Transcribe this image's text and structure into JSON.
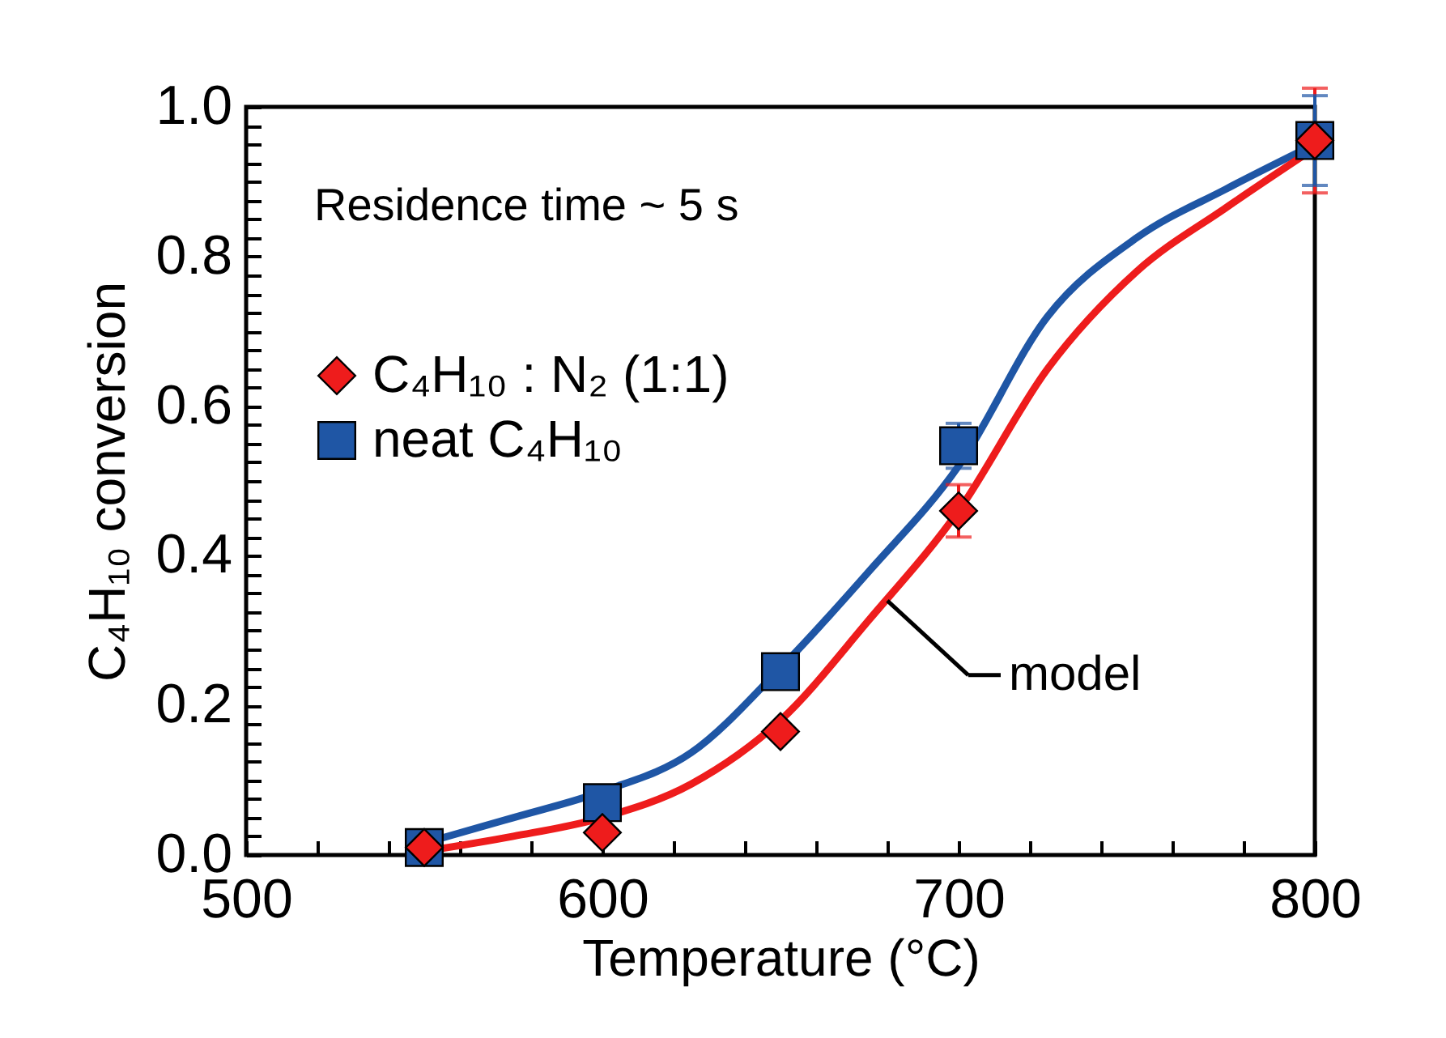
{
  "chart_data": {
    "type": "scatter",
    "xlabel": "Temperature (°C)",
    "ylabel": "C₄H₁₀ conversion",
    "annotations": [
      "Residence time ~ 5 s",
      {
        "text": "model",
        "x": 680,
        "y": 0.34
      }
    ],
    "xlim": [
      500,
      800
    ],
    "xticks": [
      500,
      {
        "value": 520,
        "label": null
      },
      {
        "value": 540,
        "label": null
      },
      {
        "value": 560,
        "label": null
      },
      {
        "value": 580,
        "label": null
      },
      600,
      {
        "value": 620,
        "label": null
      },
      {
        "value": 640,
        "label": null
      },
      {
        "value": 660,
        "label": null
      },
      {
        "value": 680,
        "label": null
      },
      700,
      {
        "value": 720,
        "label": null
      },
      {
        "value": 740,
        "label": null
      },
      {
        "value": 760,
        "label": null
      },
      {
        "value": 780,
        "label": null
      },
      800
    ],
    "ylim": [
      0,
      1
    ],
    "yticks": [
      {
        "value": 0,
        "label": "0.0"
      },
      {
        "value": 0.025,
        "label": null
      },
      {
        "value": 0.05,
        "label": null
      },
      {
        "value": 0.075,
        "label": null
      },
      {
        "value": 0.1,
        "label": null
      },
      {
        "value": 0.125,
        "label": null
      },
      {
        "value": 0.15,
        "label": null
      },
      {
        "value": 0.175,
        "label": null
      },
      0.2,
      {
        "value": 0.225,
        "label": null
      },
      {
        "value": 0.25,
        "label": null
      },
      {
        "value": 0.275,
        "label": null
      },
      {
        "value": 0.3,
        "label": null
      },
      {
        "value": 0.325,
        "label": null
      },
      {
        "value": 0.35,
        "label": null
      },
      {
        "value": 0.375,
        "label": null
      },
      0.4,
      {
        "value": 0.425,
        "label": null
      },
      {
        "value": 0.45,
        "label": null
      },
      {
        "value": 0.475,
        "label": null
      },
      {
        "value": 0.5,
        "label": null
      },
      {
        "value": 0.525,
        "label": null
      },
      {
        "value": 0.55,
        "label": null
      },
      {
        "value": 0.575,
        "label": null
      },
      0.6,
      {
        "value": 0.625,
        "label": null
      },
      {
        "value": 0.65,
        "label": null
      },
      {
        "value": 0.675,
        "label": null
      },
      {
        "value": 0.7,
        "label": null
      },
      {
        "value": 0.725,
        "label": null
      },
      {
        "value": 0.75,
        "label": null
      },
      {
        "value": 0.775,
        "label": null
      },
      0.8,
      {
        "value": 0.825,
        "label": null
      },
      {
        "value": 0.85,
        "label": null
      },
      {
        "value": 0.875,
        "label": null
      },
      {
        "value": 0.9,
        "label": null
      },
      {
        "value": 0.925,
        "label": null
      },
      {
        "value": 0.95,
        "label": null
      },
      {
        "value": 0.975,
        "label": null
      },
      {
        "value": 1,
        "label": "1.0"
      }
    ],
    "grid": false,
    "legend": "top left",
    "series": [
      {
        "name": "C₄H₁₀ : N₂  (1:1)",
        "type": "scatter",
        "marker": "diamond",
        "color": "#ee1c1c",
        "x": [
          550,
          600,
          650,
          700,
          800
        ],
        "values": [
          0.01,
          0.03,
          0.165,
          0.46,
          0.955
        ],
        "errors": [
          null,
          null,
          null,
          0.035,
          0.07
        ]
      },
      {
        "name": "neat C₄H₁₀",
        "type": "scatter",
        "marker": "square",
        "color": "#1f56a5",
        "x": [
          550,
          600,
          650,
          700,
          800
        ],
        "values": [
          0.01,
          0.07,
          0.245,
          0.547,
          0.955
        ],
        "errors": [
          null,
          null,
          null,
          0.03,
          0.06
        ]
      },
      {
        "type": "line",
        "marker": "none",
        "color": "#1f56a5",
        "x": [
          550,
          575,
          600,
          625,
          650,
          675,
          700,
          725,
          750,
          775,
          800
        ],
        "values": [
          0.016,
          0.05,
          0.085,
          0.137,
          0.25,
          0.38,
          0.52,
          0.72,
          0.825,
          0.89,
          0.95
        ]
      },
      {
        "type": "line",
        "marker": "none",
        "color": "#ee1c1c",
        "x": [
          550,
          575,
          600,
          625,
          650,
          675,
          700,
          725,
          750,
          775,
          800
        ],
        "values": [
          0.005,
          0.025,
          0.05,
          0.095,
          0.18,
          0.315,
          0.46,
          0.65,
          0.78,
          0.865,
          0.945
        ]
      }
    ]
  }
}
